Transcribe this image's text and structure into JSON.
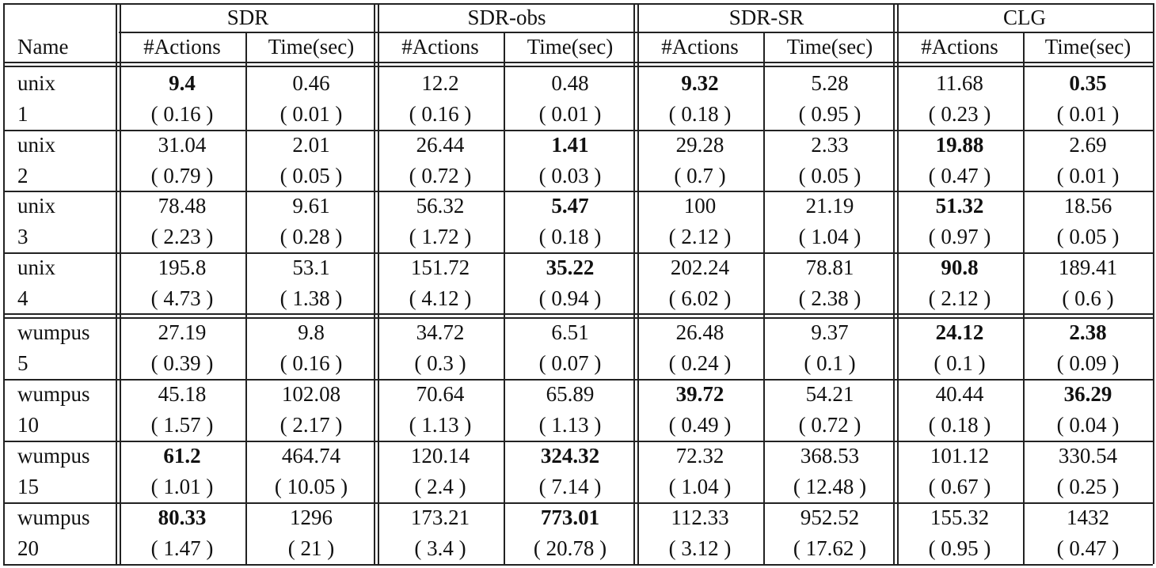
{
  "table": {
    "groups": [
      "SDR",
      "SDR-obs",
      "SDR-SR",
      "CLG"
    ],
    "name_header": "Name",
    "sub_headers": [
      "#Actions",
      "Time(sec)"
    ],
    "rows": [
      {
        "name": "unix",
        "num": "1",
        "values": [
          "9.4",
          "0.46",
          "12.2",
          "0.48",
          "9.32",
          "5.28",
          "11.68",
          "0.35"
        ],
        "stds": [
          "( 0.16 )",
          "( 0.01 )",
          "( 0.16 )",
          "( 0.01 )",
          "( 0.18 )",
          "( 0.95 )",
          "( 0.23 )",
          "( 0.01 )"
        ],
        "bold": [
          0,
          4,
          7
        ]
      },
      {
        "name": "unix",
        "num": "2",
        "values": [
          "31.04",
          "2.01",
          "26.44",
          "1.41",
          "29.28",
          "2.33",
          "19.88",
          "2.69"
        ],
        "stds": [
          "( 0.79 )",
          "( 0.05 )",
          "( 0.72 )",
          "( 0.03 )",
          "( 0.7 )",
          "( 0.05 )",
          "( 0.47 )",
          "( 0.01 )"
        ],
        "bold": [
          3,
          6
        ]
      },
      {
        "name": "unix",
        "num": "3",
        "values": [
          "78.48",
          "9.61",
          "56.32",
          "5.47",
          "100",
          "21.19",
          "51.32",
          "18.56"
        ],
        "stds": [
          "( 2.23 )",
          "( 0.28 )",
          "( 1.72 )",
          "( 0.18 )",
          "( 2.12 )",
          "( 1.04 )",
          "( 0.97 )",
          "( 0.05 )"
        ],
        "bold": [
          3,
          6
        ]
      },
      {
        "name": "unix",
        "num": "4",
        "values": [
          "195.8",
          "53.1",
          "151.72",
          "35.22",
          "202.24",
          "78.81",
          "90.8",
          "189.41"
        ],
        "stds": [
          "( 4.73 )",
          "( 1.38 )",
          "( 4.12 )",
          "( 0.94 )",
          "( 6.02 )",
          "( 2.38 )",
          "( 2.12 )",
          "( 0.6 )"
        ],
        "bold": [
          3,
          6
        ]
      },
      {
        "name": "wumpus",
        "num": "5",
        "values": [
          "27.19",
          "9.8",
          "34.72",
          "6.51",
          "26.48",
          "9.37",
          "24.12",
          "2.38"
        ],
        "stds": [
          "( 0.39 )",
          "( 0.16 )",
          "( 0.3 )",
          "( 0.07 )",
          "( 0.24 )",
          "( 0.1 )",
          "( 0.1 )",
          "( 0.09 )"
        ],
        "bold": [
          6,
          7
        ]
      },
      {
        "name": "wumpus",
        "num": "10",
        "values": [
          "45.18",
          "102.08",
          "70.64",
          "65.89",
          "39.72",
          "54.21",
          "40.44",
          "36.29"
        ],
        "stds": [
          "( 1.57 )",
          "( 2.17 )",
          "( 1.13 )",
          "( 1.13 )",
          "( 0.49 )",
          "( 0.72 )",
          "( 0.18 )",
          "( 0.04 )"
        ],
        "bold": [
          4,
          7
        ]
      },
      {
        "name": "wumpus",
        "num": "15",
        "values": [
          "61.2",
          "464.74",
          "120.14",
          "324.32",
          "72.32",
          "368.53",
          "101.12",
          "330.54"
        ],
        "stds": [
          "( 1.01 )",
          "( 10.05 )",
          "( 2.4 )",
          "( 7.14 )",
          "( 1.04 )",
          "( 12.48 )",
          "( 0.67 )",
          "( 0.25 )"
        ],
        "bold": [
          0,
          3
        ]
      },
      {
        "name": "wumpus",
        "num": "20",
        "values": [
          "80.33",
          "1296",
          "173.21",
          "773.01",
          "112.33",
          "952.52",
          "155.32",
          "1432"
        ],
        "stds": [
          "( 1.47 )",
          "( 21 )",
          "( 3.4 )",
          "( 20.78 )",
          "( 3.12 )",
          "( 17.62 )",
          "( 0.95 )",
          "( 0.47 )"
        ],
        "bold": [
          0,
          3
        ]
      }
    ]
  }
}
